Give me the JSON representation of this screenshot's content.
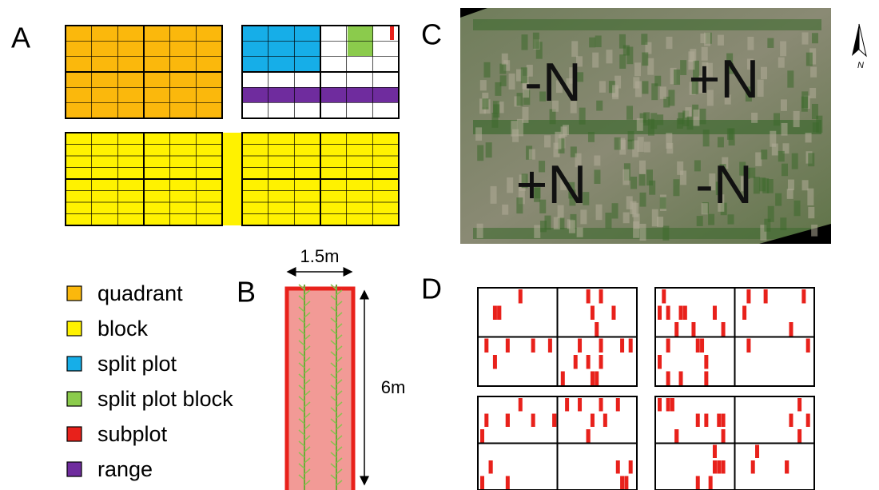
{
  "panels": {
    "a": "A",
    "b": "B",
    "c": "C",
    "d": "D"
  },
  "legend": [
    "quadrant",
    "block",
    "split plot",
    "split plot block",
    "subplot",
    "range"
  ],
  "plot": {
    "width": "1.5m",
    "length": "6m"
  },
  "field": {
    "labels": [
      "-N",
      "+N",
      "+N",
      "-N"
    ],
    "north": "N"
  }
}
